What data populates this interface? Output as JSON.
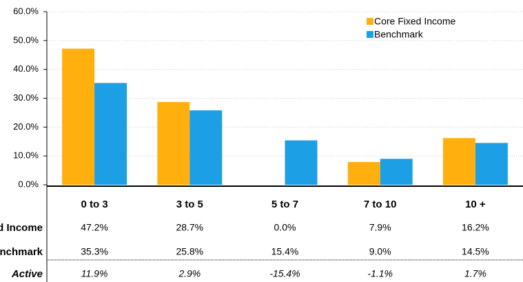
{
  "chart_data": {
    "type": "bar",
    "categories": [
      "0 to 3",
      "3 to 5",
      "5 to 7",
      "7 to 10",
      "10 +"
    ],
    "series": [
      {
        "name": "Core Fixed Income",
        "color": "#FFB00F",
        "values": [
          47.2,
          28.7,
          0.0,
          7.9,
          16.2
        ],
        "value_labels": [
          "47.2%",
          "28.7%",
          "0.0%",
          "7.9%",
          "16.2%"
        ]
      },
      {
        "name": "Benchmark",
        "color": "#1D9FE6",
        "values": [
          35.3,
          25.8,
          15.4,
          9.0,
          14.5
        ],
        "value_labels": [
          "35.3%",
          "25.8%",
          "15.4%",
          "9.0%",
          "14.5%"
        ]
      }
    ],
    "active": {
      "name": "Active",
      "labels": [
        "11.9%",
        "2.9%",
        "-15.4%",
        "-1.1%",
        "1.7%"
      ]
    },
    "ylim": [
      0,
      60
    ],
    "yticks": [
      {
        "value": 0,
        "label": "0.0%"
      },
      {
        "value": 10,
        "label": "10.0%"
      },
      {
        "value": 20,
        "label": "20.0%"
      },
      {
        "value": 30,
        "label": "30.0%"
      },
      {
        "value": 40,
        "label": "40.0%"
      },
      {
        "value": 50,
        "label": "50.0%"
      },
      {
        "value": 60,
        "label": "60.0%"
      }
    ],
    "grid": true,
    "legend": "top-right"
  }
}
